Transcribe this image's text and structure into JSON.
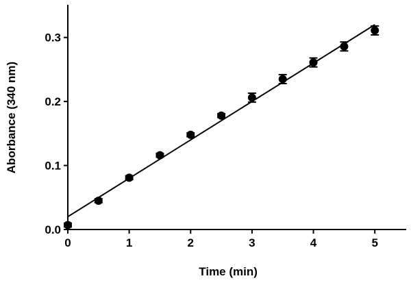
{
  "chart_data": {
    "type": "scatter",
    "xlabel": "Time (min)",
    "ylabel": "Aborbance (340 nm)",
    "xlim": [
      0,
      5.5
    ],
    "ylim": [
      0,
      0.35
    ],
    "xticks": [
      0,
      1,
      2,
      3,
      4,
      5
    ],
    "xtick_labels": [
      "0",
      "1",
      "2",
      "3",
      "4",
      "5"
    ],
    "yticks": [
      0,
      0.1,
      0.2,
      0.3
    ],
    "ytick_labels": [
      "0.0",
      "0.1",
      "0.2",
      "0.3"
    ],
    "grid": false,
    "legend": "none",
    "series": [
      {
        "x": [
          0,
          0.5,
          1,
          1.5,
          2,
          2.5,
          3,
          3.5,
          4,
          4.5,
          5
        ],
        "y": [
          0.007,
          0.045,
          0.081,
          0.116,
          0.148,
          0.178,
          0.206,
          0.235,
          0.261,
          0.286,
          0.311
        ],
        "error": [
          0.003,
          0.003,
          0.003,
          0.003,
          0.003,
          0.003,
          0.007,
          0.007,
          0.007,
          0.007,
          0.007
        ],
        "color": "#000000"
      }
    ],
    "fit_line": {
      "type": "linear",
      "x": [
        0,
        5
      ],
      "y": [
        0.02,
        0.32
      ],
      "color": "#000000"
    }
  }
}
